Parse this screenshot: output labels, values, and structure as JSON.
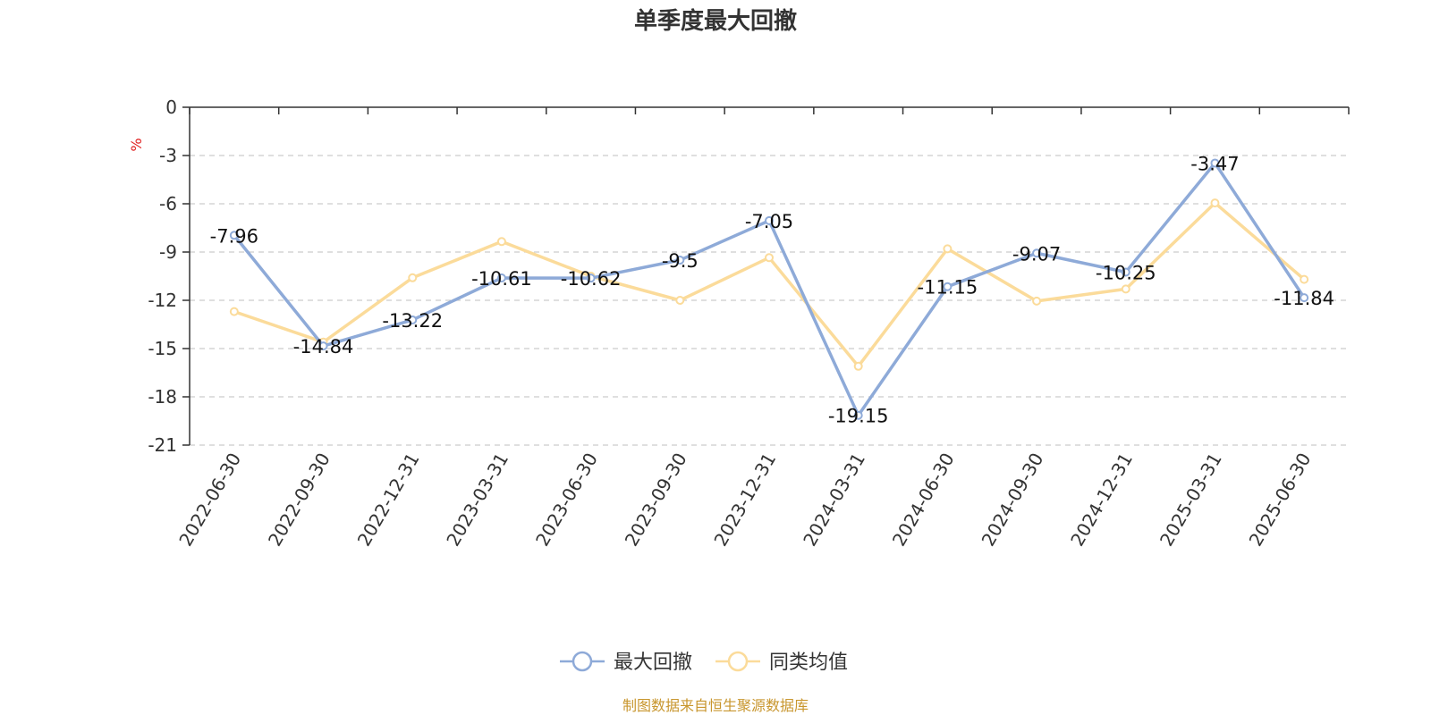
{
  "chart_data": {
    "type": "line",
    "title": "单季度最大回撤",
    "unit": "%",
    "categories": [
      "2022-06-30",
      "2022-09-30",
      "2022-12-31",
      "2023-03-31",
      "2023-06-30",
      "2023-09-30",
      "2023-12-31",
      "2024-03-31",
      "2024-06-30",
      "2024-09-30",
      "2024-12-31",
      "2025-03-31",
      "2025-06-30"
    ],
    "ylim": [
      -21,
      0
    ],
    "yticks": [
      0,
      -3,
      -6,
      -9,
      -12,
      -15,
      -18,
      -21
    ],
    "grid": true,
    "legend_position": "bottom-center",
    "series": [
      {
        "name": "最大回撤",
        "color": "#8eaad8",
        "values": [
          -7.96,
          -14.84,
          -13.22,
          -10.61,
          -10.62,
          -9.5,
          -7.05,
          -19.15,
          -11.15,
          -9.07,
          -10.25,
          -3.47,
          -11.84
        ],
        "labels": [
          "-7.96",
          "-14.84",
          "-13.22",
          "-10.61",
          "-10.62",
          "-9.5",
          "-7.05",
          "-19.15",
          "-11.15",
          "-9.07",
          "-10.25",
          "-3.47",
          "-11.84"
        ]
      },
      {
        "name": "同类均值",
        "color": "#fbdb9a",
        "values": [
          -12.7,
          -14.6,
          -10.6,
          -8.35,
          -10.5,
          -12.0,
          -9.35,
          -16.1,
          -8.8,
          -12.05,
          -11.3,
          -5.95,
          -10.7
        ]
      }
    ]
  },
  "source_text": "制图数据来自恒生聚源数据库"
}
